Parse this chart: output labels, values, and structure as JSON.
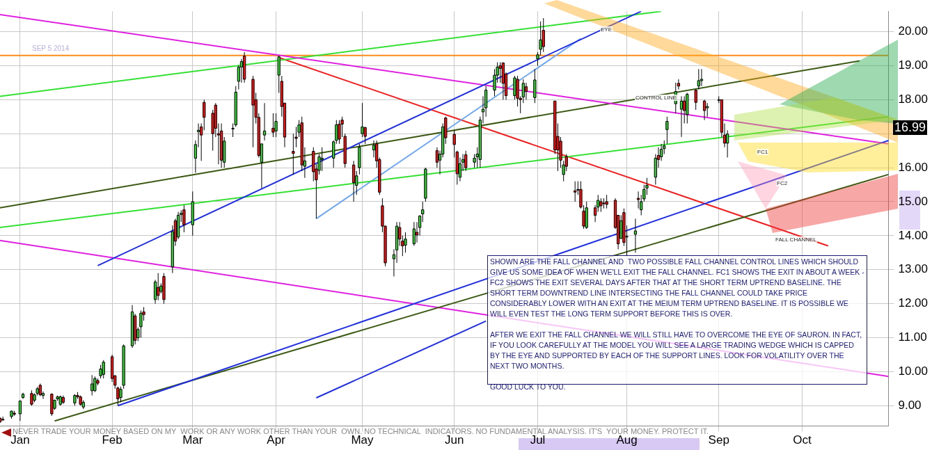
{
  "chart_data": {
    "type": "candlestick",
    "title": "SEP 5 2014",
    "x": [
      "2013-12-26",
      "2013-12-27",
      "2013-12-30",
      "2013-12-31",
      "2014-01-02",
      "2014-01-03",
      "2014-01-06",
      "2014-01-07",
      "2014-01-08",
      "2014-01-09",
      "2014-01-10",
      "2014-01-13",
      "2014-01-14",
      "2014-01-15",
      "2014-01-16",
      "2014-01-17",
      "2014-01-21",
      "2014-01-22",
      "2014-01-23",
      "2014-01-24",
      "2014-01-27",
      "2014-01-28",
      "2014-01-29",
      "2014-01-30",
      "2014-01-31",
      "2014-02-03",
      "2014-02-04",
      "2014-02-05",
      "2014-02-06",
      "2014-02-07",
      "2014-02-10",
      "2014-02-11",
      "2014-02-12",
      "2014-02-13",
      "2014-02-14",
      "2014-02-18",
      "2014-02-19",
      "2014-02-20",
      "2014-02-21",
      "2014-02-24",
      "2014-02-25",
      "2014-02-26",
      "2014-02-27",
      "2014-02-28",
      "2014-03-03",
      "2014-03-04",
      "2014-03-05",
      "2014-03-06",
      "2014-03-07",
      "2014-03-10",
      "2014-03-11",
      "2014-03-12",
      "2014-03-13",
      "2014-03-14",
      "2014-03-17",
      "2014-03-18",
      "2014-03-19",
      "2014-03-20",
      "2014-03-21",
      "2014-03-24",
      "2014-03-25",
      "2014-03-26",
      "2014-03-27",
      "2014-03-28",
      "2014-03-31",
      "2014-04-01",
      "2014-04-02",
      "2014-04-03",
      "2014-04-04",
      "2014-04-07",
      "2014-04-08",
      "2014-04-09",
      "2014-04-10",
      "2014-04-11",
      "2014-04-14",
      "2014-04-15",
      "2014-04-16",
      "2014-04-17",
      "2014-04-21",
      "2014-04-22",
      "2014-04-23",
      "2014-04-24",
      "2014-04-25",
      "2014-04-28",
      "2014-04-29",
      "2014-04-30",
      "2014-05-01",
      "2014-05-02",
      "2014-05-05",
      "2014-05-06",
      "2014-05-07",
      "2014-05-08",
      "2014-05-09",
      "2014-05-12",
      "2014-05-13",
      "2014-05-14",
      "2014-05-15",
      "2014-05-16",
      "2014-05-19",
      "2014-05-20",
      "2014-05-21",
      "2014-05-22",
      "2014-05-23",
      "2014-05-27",
      "2014-05-28",
      "2014-05-29",
      "2014-05-30",
      "2014-06-02",
      "2014-06-03",
      "2014-06-04",
      "2014-06-05",
      "2014-06-06",
      "2014-06-09",
      "2014-06-10",
      "2014-06-11",
      "2014-06-12",
      "2014-06-13",
      "2014-06-16",
      "2014-06-17",
      "2014-06-18",
      "2014-06-19",
      "2014-06-20",
      "2014-06-23",
      "2014-06-24",
      "2014-06-25",
      "2014-06-26",
      "2014-06-27",
      "2014-06-30",
      "2014-07-01",
      "2014-07-02",
      "2014-07-03",
      "2014-07-07",
      "2014-07-08",
      "2014-07-09",
      "2014-07-10",
      "2014-07-11",
      "2014-07-14",
      "2014-07-15",
      "2014-07-16",
      "2014-07-17",
      "2014-07-18",
      "2014-07-21",
      "2014-07-22",
      "2014-07-23",
      "2014-07-24",
      "2014-07-25",
      "2014-07-28",
      "2014-07-29",
      "2014-07-30",
      "2014-07-31",
      "2014-08-01",
      "2014-08-04",
      "2014-08-05",
      "2014-08-06",
      "2014-08-07",
      "2014-08-08",
      "2014-08-11",
      "2014-08-12",
      "2014-08-13",
      "2014-08-14",
      "2014-08-15",
      "2014-08-18",
      "2014-08-19",
      "2014-08-20",
      "2014-08-21",
      "2014-08-22",
      "2014-08-25",
      "2014-08-26",
      "2014-08-27",
      "2014-08-28",
      "2014-08-29",
      "2014-09-02",
      "2014-09-03",
      "2014-09-04",
      "2014-09-05"
    ],
    "ohlc": [
      [
        8.63,
        8.66,
        8.5,
        8.52
      ],
      [
        8.6,
        8.68,
        8.55,
        8.58
      ],
      [
        8.68,
        8.85,
        8.62,
        8.84
      ],
      [
        8.78,
        8.85,
        8.7,
        8.75
      ],
      [
        8.76,
        9.15,
        8.55,
        9.14
      ],
      [
        9.24,
        9.38,
        9.2,
        9.34
      ],
      [
        9.36,
        9.45,
        9.0,
        9.04
      ],
      [
        9.16,
        9.36,
        9.1,
        9.32
      ],
      [
        9.36,
        9.55,
        9.3,
        9.5
      ],
      [
        9.6,
        9.65,
        9.28,
        9.32
      ],
      [
        9.3,
        9.42,
        9.2,
        9.36
      ],
      [
        9.34,
        9.36,
        8.7,
        8.76
      ],
      [
        8.92,
        9.18,
        8.88,
        9.16
      ],
      [
        9.2,
        9.3,
        9.14,
        9.26
      ],
      [
        9.04,
        9.3,
        9.0,
        9.26
      ],
      [
        9.24,
        9.3,
        9.05,
        9.1
      ],
      [
        9.08,
        9.34,
        9.0,
        9.3
      ],
      [
        9.3,
        9.4,
        9.2,
        9.26
      ],
      [
        9.26,
        9.3,
        9.0,
        9.04
      ],
      [
        8.96,
        9.16,
        8.9,
        9.1
      ],
      [
        9.44,
        9.9,
        9.3,
        9.64
      ],
      [
        9.44,
        9.86,
        9.4,
        9.8
      ],
      [
        9.74,
        9.8,
        9.6,
        9.66
      ],
      [
        9.88,
        10.2,
        9.8,
        10.08
      ],
      [
        9.92,
        10.34,
        9.8,
        10.28
      ],
      [
        10.44,
        10.5,
        9.7,
        9.8
      ],
      [
        9.88,
        9.9,
        9.5,
        9.6
      ],
      [
        9.52,
        9.56,
        9.0,
        9.2
      ],
      [
        9.24,
        9.56,
        9.1,
        9.48
      ],
      [
        9.6,
        10.8,
        9.5,
        10.76
      ],
      [
        10.76,
        11.96,
        10.7,
        11.76
      ],
      [
        11.64,
        11.7,
        10.8,
        10.92
      ],
      [
        11.0,
        11.3,
        10.9,
        11.24
      ],
      [
        11.32,
        11.8,
        11.0,
        11.72
      ],
      [
        11.76,
        11.9,
        11.5,
        11.68
      ],
      [
        12.12,
        12.7,
        12.0,
        12.64
      ],
      [
        12.48,
        12.9,
        12.1,
        12.24
      ],
      [
        12.36,
        12.6,
        12.3,
        12.52
      ],
      [
        12.8,
        12.9,
        12.0,
        12.12
      ],
      [
        13.08,
        14.3,
        12.9,
        14.12
      ],
      [
        14.44,
        14.5,
        13.7,
        13.84
      ],
      [
        13.96,
        14.7,
        13.9,
        14.6
      ],
      [
        14.62,
        14.75,
        14.4,
        14.66
      ],
      [
        14.76,
        14.9,
        14.1,
        14.32
      ],
      [
        14.32,
        15.3,
        14.0,
        15.0
      ],
      [
        16.28,
        16.8,
        15.85,
        16.68
      ],
      [
        17.06,
        17.3,
        16.6,
        17.1
      ],
      [
        17.2,
        17.3,
        16.2,
        16.96
      ],
      [
        17.92,
        18.0,
        17.1,
        17.48
      ],
      [
        17.6,
        17.7,
        16.5,
        17.0
      ],
      [
        17.84,
        17.9,
        16.9,
        17.16
      ],
      [
        17.0,
        17.3,
        16.1,
        16.96
      ],
      [
        17.08,
        17.3,
        16.0,
        16.22
      ],
      [
        16.16,
        16.9,
        16.0,
        16.78
      ],
      [
        17.14,
        17.3,
        16.9,
        17.16
      ],
      [
        17.26,
        18.4,
        17.2,
        18.22
      ],
      [
        18.54,
        19.0,
        18.3,
        18.96
      ],
      [
        18.96,
        19.2,
        18.5,
        19.12
      ],
      [
        19.28,
        19.4,
        18.5,
        18.6
      ],
      [
        18.6,
        18.7,
        16.6,
        17.84
      ],
      [
        18.0,
        18.2,
        17.3,
        17.48
      ],
      [
        17.48,
        17.6,
        16.3,
        16.36
      ],
      [
        16.16,
        16.7,
        15.4,
        16.7
      ],
      [
        16.96,
        17.9,
        16.8,
        17.08
      ],
      [
        17.16,
        17.6,
        16.9,
        17.04
      ],
      [
        17.08,
        17.6,
        16.9,
        17.36
      ],
      [
        18.72,
        19.3,
        18.2,
        19.26
      ],
      [
        18.54,
        18.7,
        17.5,
        17.8
      ],
      [
        17.9,
        17.9,
        16.6,
        16.9
      ],
      [
        16.48,
        17.0,
        15.8,
        16.42
      ],
      [
        16.9,
        17.2,
        16.6,
        16.86
      ],
      [
        17.04,
        17.4,
        16.9,
        17.26
      ],
      [
        17.32,
        17.5,
        15.9,
        16.08
      ],
      [
        16.04,
        16.6,
        15.7,
        16.2
      ],
      [
        16.48,
        16.6,
        15.6,
        15.88
      ],
      [
        15.96,
        16.1,
        14.5,
        15.64
      ],
      [
        15.92,
        16.4,
        15.8,
        16.32
      ],
      [
        16.24,
        16.6,
        15.9,
        16.28
      ],
      [
        16.28,
        16.8,
        16.0,
        16.76
      ],
      [
        16.8,
        17.4,
        16.7,
        17.26
      ],
      [
        17.28,
        17.4,
        16.7,
        16.84
      ],
      [
        17.4,
        17.5,
        16.9,
        17.28
      ],
      [
        16.92,
        17.0,
        16.0,
        16.12
      ],
      [
        16.08,
        16.2,
        15.0,
        15.56
      ],
      [
        15.48,
        15.9,
        15.2,
        15.76
      ],
      [
        16.0,
        16.7,
        15.8,
        16.6
      ],
      [
        17.0,
        17.9,
        16.9,
        17.2
      ],
      [
        17.18,
        17.2,
        16.7,
        16.92
      ],
      [
        16.52,
        16.8,
        16.3,
        16.66
      ],
      [
        16.7,
        16.8,
        16.0,
        16.2
      ],
      [
        16.24,
        16.3,
        15.2,
        15.28
      ],
      [
        14.88,
        15.1,
        14.1,
        14.28
      ],
      [
        14.28,
        14.3,
        13.1,
        13.2
      ],
      [
        13.32,
        13.6,
        12.8,
        13.44
      ],
      [
        13.58,
        14.4,
        13.2,
        14.28
      ],
      [
        14.24,
        14.4,
        13.7,
        13.9
      ],
      [
        13.84,
        14.0,
        13.4,
        13.7
      ],
      [
        13.72,
        14.1,
        13.5,
        13.9
      ],
      [
        13.76,
        14.4,
        13.7,
        14.2
      ],
      [
        14.1,
        14.4,
        13.8,
        14.02
      ],
      [
        14.24,
        14.6,
        14.0,
        14.58
      ],
      [
        14.64,
        15.0,
        14.4,
        14.76
      ],
      [
        15.1,
        16.0,
        15.0,
        15.96
      ],
      [
        16.5,
        16.6,
        16.0,
        16.16
      ],
      [
        16.22,
        16.5,
        15.8,
        16.4
      ],
      [
        16.4,
        17.3,
        16.3,
        17.2
      ],
      [
        17.46,
        17.5,
        16.7,
        16.88
      ],
      [
        16.98,
        17.1,
        16.3,
        16.68
      ],
      [
        16.46,
        16.5,
        15.5,
        15.82
      ],
      [
        15.72,
        16.3,
        15.6,
        16.12
      ],
      [
        16.16,
        16.4,
        15.9,
        16.24
      ],
      [
        16.38,
        16.5,
        15.9,
        16.0
      ],
      [
        16.16,
        16.4,
        16.0,
        16.28
      ],
      [
        16.32,
        16.6,
        16.0,
        16.4
      ],
      [
        16.24,
        17.5,
        16.0,
        17.4
      ],
      [
        17.64,
        18.1,
        17.3,
        17.72
      ],
      [
        17.76,
        18.4,
        17.5,
        18.28
      ],
      [
        18.28,
        18.9,
        18.1,
        18.72
      ],
      [
        18.72,
        19.1,
        18.5,
        18.96
      ],
      [
        19.0,
        19.1,
        18.5,
        18.92
      ],
      [
        19.08,
        19.1,
        18.0,
        18.48
      ],
      [
        18.76,
        18.8,
        18.0,
        18.12
      ],
      [
        18.12,
        18.7,
        18.0,
        18.64
      ],
      [
        18.6,
        18.7,
        17.8,
        18.04
      ],
      [
        18.04,
        18.1,
        17.6,
        18.0
      ],
      [
        18.08,
        18.6,
        17.9,
        18.48
      ],
      [
        18.38,
        18.5,
        18.0,
        18.24
      ],
      [
        18.06,
        18.9,
        17.9,
        18.58
      ],
      [
        19.2,
        19.4,
        19.0,
        19.32
      ],
      [
        19.48,
        20.3,
        19.3,
        19.76
      ],
      [
        20.04,
        20.4,
        19.4,
        19.56
      ],
      [
        17.96,
        17.96,
        16.4,
        16.52
      ],
      [
        16.92,
        17.3,
        15.9,
        16.52
      ],
      [
        16.78,
        16.9,
        16.0,
        16.22
      ],
      [
        15.8,
        16.2,
        15.6,
        16.08
      ],
      [
        16.32,
        16.4,
        15.9,
        16.04
      ],
      [
        15.32,
        15.6,
        15.0,
        15.28
      ],
      [
        15.36,
        15.6,
        15.2,
        15.34
      ],
      [
        15.36,
        15.6,
        14.8,
        14.84
      ],
      [
        14.72,
        14.9,
        14.2,
        14.28
      ],
      [
        14.24,
        15.0,
        14.2,
        14.82
      ],
      [
        14.82,
        14.9,
        14.4,
        14.6
      ],
      [
        14.84,
        15.2,
        14.7,
        15.04
      ],
      [
        15.0,
        15.1,
        14.7,
        14.88
      ],
      [
        14.96,
        15.1,
        14.8,
        14.94
      ],
      [
        15.0,
        15.2,
        14.8,
        14.92
      ],
      [
        15.04,
        15.1,
        14.2,
        14.24
      ],
      [
        14.6,
        14.6,
        13.6,
        13.76
      ],
      [
        13.92,
        14.6,
        13.9,
        14.44
      ],
      [
        14.68,
        14.8,
        13.7,
        13.8
      ],
      [
        13.96,
        14.3,
        13.4,
        13.98
      ],
      [
        14.04,
        14.5,
        13.5,
        14.14
      ],
      [
        15.1,
        15.3,
        14.8,
        15.06
      ],
      [
        14.76,
        15.2,
        14.6,
        15.0
      ],
      [
        15.08,
        15.5,
        15.0,
        15.36
      ],
      [
        15.4,
        15.7,
        15.2,
        15.48
      ],
      [
        15.72,
        16.4,
        15.5,
        16.28
      ],
      [
        16.36,
        16.6,
        16.0,
        16.24
      ],
      [
        16.32,
        16.7,
        16.2,
        16.54
      ],
      [
        16.56,
        16.8,
        16.4,
        16.64
      ],
      [
        17.12,
        17.5,
        16.7,
        17.36
      ],
      [
        17.88,
        18.5,
        17.6,
        18.24
      ],
      [
        18.48,
        18.6,
        18.3,
        18.4
      ],
      [
        17.72,
        18.1,
        16.9,
        17.96
      ],
      [
        17.96,
        18.1,
        17.3,
        17.68
      ],
      [
        17.56,
        18.2,
        17.3,
        18.16
      ],
      [
        18.28,
        18.3,
        17.7,
        17.92
      ],
      [
        18.4,
        18.9,
        18.3,
        18.56
      ],
      [
        18.56,
        18.9,
        18.4,
        18.6
      ],
      [
        17.96,
        18.0,
        17.4,
        17.68
      ],
      [
        17.76,
        17.9,
        17.5,
        17.8
      ],
      [
        17.98,
        18.1,
        17.9,
        18.0
      ],
      [
        18.0,
        18.0,
        16.9,
        17.04
      ],
      [
        16.96,
        17.3,
        16.6,
        16.72
      ],
      [
        16.72,
        17.1,
        16.3,
        16.99
      ]
    ],
    "series": [
      {
        "type": "line",
        "color": "#1f2fe0",
        "x": [
          "2014-01-29",
          "2014-08-06"
        ],
        "values": [
          13.12,
          20.6
        ]
      },
      {
        "type": "line",
        "color": "#1f2fe0",
        "x": [
          "2014-02-05",
          "2014-10-31"
        ],
        "values": [
          9.0,
          16.8
        ]
      },
      {
        "type": "line",
        "color": "#1f2fe0",
        "x": [
          "2014-04-15",
          "2014-06-13"
        ],
        "values": [
          9.23,
          11.49
        ]
      },
      {
        "type": "line",
        "color": "#e020e0",
        "x": [
          "2013-12-26",
          "2014-10-31"
        ],
        "values": [
          20.5,
          16.7
        ]
      },
      {
        "type": "line",
        "color": "#33e033",
        "x": [
          "2013-12-26",
          "2014-08-13"
        ],
        "values": [
          18.1,
          20.6
        ]
      },
      {
        "type": "line",
        "color": "#3c5a14",
        "x": [
          "2013-12-26",
          "2014-10-21"
        ],
        "values": [
          14.82,
          19.14
        ]
      },
      {
        "type": "line",
        "color": "#3c5a14",
        "x": [
          "2014-01-14",
          "2014-10-31"
        ],
        "values": [
          8.55,
          15.8
        ]
      },
      {
        "type": "line",
        "color": "#33e033",
        "x": [
          "2013-12-26",
          "2014-10-31"
        ],
        "values": [
          14.24,
          17.5
        ]
      },
      {
        "type": "line",
        "color": "#6fa8f0",
        "x": [
          "2014-04-15",
          "2014-07-16"
        ],
        "values": [
          14.5,
          19.8
        ]
      },
      {
        "type": "line",
        "color": "#f02020",
        "x": [
          "2014-04-02",
          "2014-10-10"
        ],
        "values": [
          19.24,
          13.7
        ]
      },
      {
        "type": "line",
        "color": "#e020e0",
        "x": [
          "2013-12-26",
          "2014-10-31"
        ],
        "values": [
          13.86,
          9.86
        ]
      }
    ],
    "ref_lines": [
      {
        "axis": "y",
        "value": 19.3,
        "color": "#ff8c1a"
      }
    ],
    "xlim": [
      "2013-12-26",
      "2014-10-31"
    ],
    "xticks": [
      {
        "value": "2014-01-02",
        "label": "Jan"
      },
      {
        "value": "2014-02-03",
        "label": "Feb"
      },
      {
        "value": "2014-03-03",
        "label": "Mar"
      },
      {
        "value": "2014-04-01",
        "label": "Apr"
      },
      {
        "value": "2014-05-01",
        "label": "May"
      },
      {
        "value": "2014-06-02",
        "label": "Jun"
      },
      {
        "value": "2014-07-01",
        "label": "Jul"
      },
      {
        "value": "2014-08-01",
        "label": "Aug"
      },
      {
        "value": "2014-09-02",
        "label": "Sep"
      },
      {
        "value": "2014-10-01",
        "label": "Oct"
      }
    ],
    "ylim": [
      8.4,
      20.6
    ],
    "yticks": [
      {
        "value": 9,
        "label": "9.00"
      },
      {
        "value": 10,
        "label": "10.00"
      },
      {
        "value": 11,
        "label": "11.00"
      },
      {
        "value": 12,
        "label": "12.00"
      },
      {
        "value": 13,
        "label": "13.00"
      },
      {
        "value": 14,
        "label": "14.00"
      },
      {
        "value": 15,
        "label": "15.00"
      },
      {
        "value": 16,
        "label": "16.00"
      },
      {
        "value": 17,
        "label": null
      },
      {
        "value": 18,
        "label": "18.00"
      },
      {
        "value": 19,
        "label": "19.00"
      },
      {
        "value": 20,
        "label": "20.00"
      }
    ],
    "grid": true,
    "marker": "none",
    "annotations": [
      "SHOWN ARE THE FALL CHANNEL AND  TWO POSSIBLE FALL CHANNEL CONTROL LINES WHICH SHOULD GIVE US SOME IDEA OF WHEN WE'LL EXIT THE FALL CHANNEL. FC1 SHOWS THE EXIT IN ABOUT A WEEK - FC2 SHOWS THE EXIT SEVERAL DAYS AFTER THAT AT THE SHORT TERM UPTREND BASELINE. THE SHORT TERM DOWNTREND LINE INTERSECTING THE FALL CHANNEL COULD TAKE PRICE CONSIDERABLY LOWER WITH AN EXIT AT THE MEIUM TERM UPTREND BASELINE. IT IS POSSIBLE WE WILL EVEN TEST THE LONG TERM SUPPORT BEFORE THIS IS OVER.\n\nAFTER WE EXIT THE FALL CHANNEL WE WILL STILL HAVE TO OVERCOME THE EYE OF SAURON. IN FACT, IF YOU LOOK CAREFULLY AT THE MODEL YOU WILL SEE A LARGE TRADING WEDGE WHICH IS CAPPED BY THE EYE AND SUPPORTED BY EACH OF THE SUPPORT LINES. LOOK FOR VOLATILITY OVER THE NEXT TWO MONTHS.\n\nGOOD LUCK TO YOU.",
      "NEVER TRADE YOUR MONEY BASED ON MY  WORK OR ANY WORK OTHER THAN YOUR  OWN. NO TECHNICAL  INDICATORS. NO FUNDAMENTAL ANALYSIS. IT'S  YOUR MONEY. PROTECT IT.",
      "EYE",
      "CONTROL LINE",
      "FC1",
      "FC2",
      "FALL CHANNEL",
      "16.99"
    ]
  }
}
